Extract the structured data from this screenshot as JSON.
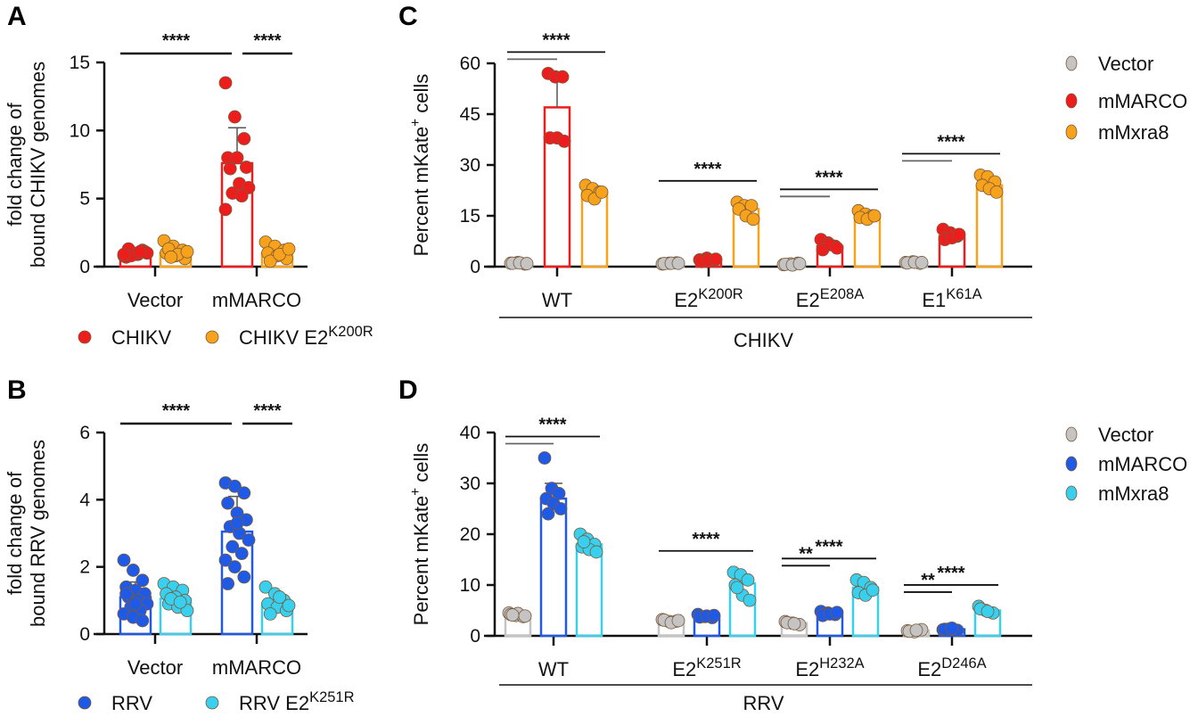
{
  "colors": {
    "Vector": "#c4c4c4",
    "CHIKV": "#ee1d1d",
    "CHIKV E2K200R": "#f7a21c",
    "mMARCO_C": "#ee1d1d",
    "mMxra8_C": "#f7a21c",
    "RRV": "#1f5ae6",
    "RRV E2K251R": "#38d0ee",
    "mMARCO_D": "#1f5ae6",
    "mMxra8_D": "#38d0ee"
  },
  "chart_data": [
    {
      "panel": "A",
      "type": "bar",
      "ylabel": [
        "fold change of",
        "bound CHIKV genomes"
      ],
      "ylim": [
        0,
        15
      ],
      "yticks": [
        0,
        5,
        10,
        15
      ],
      "categories": [
        "Vector",
        "mMARCO"
      ],
      "legend": {
        "placement": "bottom",
        "entries": [
          {
            "base": "CHIKV",
            "sup": ""
          },
          {
            "base": "CHIKV E2",
            "sup": "K200R"
          }
        ]
      },
      "series": [
        {
          "name": "CHIKV",
          "color": "#ee1d1d",
          "values": [
            1.0,
            7.6
          ],
          "points": [
            [
              0.8,
              1.0,
              1.2,
              0.7,
              0.9,
              1.1,
              1.3,
              0.9,
              1.0,
              0.8,
              1.1,
              0.9
            ],
            [
              13.5,
              11,
              9.4,
              8,
              8,
              7.3,
              7.2,
              6.1,
              5.8,
              5.4,
              5.2,
              4.2
            ]
          ],
          "err_upper": [
            null,
            10.2
          ]
        },
        {
          "name": "CHIKV E2K200R",
          "color": "#f7a21c",
          "values": [
            1.0,
            1.0
          ],
          "points": [
            [
              1.9,
              1.5,
              1.2,
              1.0,
              0.8,
              0.6,
              1.3,
              0.9,
              1.1,
              0.7
            ],
            [
              1.8,
              1.5,
              1.2,
              1.0,
              0.8,
              0.6,
              0.4,
              0.9,
              1.3
            ]
          ],
          "err_upper": [
            null,
            null
          ]
        }
      ],
      "significance": [
        {
          "from": [
            0,
            0
          ],
          "to": [
            1,
            0
          ],
          "label": "****"
        },
        {
          "from": [
            1,
            0
          ],
          "to": [
            1,
            1
          ],
          "label": "****"
        }
      ]
    },
    {
      "panel": "B",
      "type": "bar",
      "ylabel": [
        "fold change of",
        "bound RRV genomes"
      ],
      "ylim": [
        0,
        6
      ],
      "yticks": [
        0,
        2,
        4,
        6
      ],
      "categories": [
        "Vector",
        "mMARCO"
      ],
      "legend": {
        "placement": "bottom",
        "entries": [
          {
            "base": "RRV",
            "sup": ""
          },
          {
            "base": "RRV E2",
            "sup": "K251R"
          }
        ]
      },
      "series": [
        {
          "name": "RRV",
          "color": "#1f5ae6",
          "values": [
            1.1,
            3.05
          ],
          "points": [
            [
              2.2,
              1.9,
              1.6,
              1.4,
              1.3,
              1.2,
              1.1,
              1.0,
              0.9,
              0.8,
              0.7,
              0.6,
              0.5,
              0.4,
              1.2,
              0.9
            ],
            [
              4.5,
              4.4,
              4.2,
              3.9,
              3.6,
              3.4,
              3.2,
              3.0,
              2.8,
              2.6,
              2.4,
              2.2,
              2.0,
              1.7,
              1.5,
              3.3
            ]
          ],
          "err_upper": [
            1.55,
            4.1
          ]
        },
        {
          "name": "RRV E2K251R",
          "color": "#38d0ee",
          "values": [
            1.05,
            0.9
          ],
          "points": [
            [
              1.5,
              1.4,
              1.3,
              1.2,
              1.1,
              1.0,
              0.9,
              0.8,
              0.7,
              1.05,
              0.95
            ],
            [
              1.4,
              1.2,
              1.0,
              0.9,
              0.8,
              0.7,
              0.6,
              1.1,
              0.85
            ]
          ],
          "err_upper": [
            null,
            null
          ]
        }
      ],
      "significance": [
        {
          "from": [
            0,
            0
          ],
          "to": [
            1,
            0
          ],
          "label": "****"
        },
        {
          "from": [
            1,
            0
          ],
          "to": [
            1,
            1
          ],
          "label": "****"
        }
      ]
    },
    {
      "panel": "C",
      "type": "bar",
      "ylabel": [
        "Percent mKate",
        "+",
        " cells"
      ],
      "ylim": [
        0,
        60
      ],
      "yticks": [
        0,
        15,
        30,
        45,
        60
      ],
      "categories": [
        {
          "base": "WT",
          "sup": ""
        },
        {
          "base": "E2",
          "sup": "K200R"
        },
        {
          "base": "E2",
          "sup": "E208A"
        },
        {
          "base": "E1",
          "sup": "K61A"
        }
      ],
      "group_label": "CHIKV",
      "legend": {
        "placement": "right",
        "entries": [
          {
            "base": "Vector",
            "sup": ""
          },
          {
            "base": "mMARCO",
            "sup": ""
          },
          {
            "base": "mMxra8",
            "sup": ""
          }
        ]
      },
      "series": [
        {
          "name": "Vector",
          "color": "#c4c4c4",
          "values": [
            1.0,
            1.0,
            0.8,
            1.2
          ],
          "points": [
            [
              1,
              1.2,
              0.8,
              1,
              1.1,
              0.9
            ],
            [
              0.8,
              1,
              1.1,
              0.9,
              1,
              1
            ],
            [
              0.6,
              0.8,
              1,
              0.7,
              0.5,
              0.9
            ],
            [
              1.2,
              1.4,
              1,
              1.1,
              1.3,
              1.2
            ]
          ]
        },
        {
          "name": "mMARCO",
          "color": "#ee1d1d",
          "values": [
            47,
            2,
            6,
            9
          ],
          "points": [
            [
              57,
              56,
              56,
              38,
              38,
              37
            ],
            [
              2,
              2.5,
              1.8,
              1.5,
              2,
              2.2
            ],
            [
              8,
              7,
              6,
              5,
              6.5,
              5.5
            ],
            [
              11,
              10,
              9,
              8,
              8.5,
              9.5
            ]
          ],
          "err_upper": [
            57,
            null,
            null,
            null
          ]
        },
        {
          "name": "mMxra8",
          "color": "#f7a21c",
          "values": [
            22,
            17,
            15,
            24
          ],
          "points": [
            [
              24,
              23,
              22,
              21,
              20,
              22
            ],
            [
              19,
              18,
              18,
              17,
              15,
              14
            ],
            [
              16.5,
              15.5,
              15,
              14.5,
              14,
              15
            ],
            [
              27,
              26.5,
              25,
              24,
              23,
              22
            ]
          ]
        }
      ],
      "significance": [
        {
          "cat": 0,
          "from": 0,
          "to": 1,
          "label": ""
        },
        {
          "cat": 0,
          "from": 0,
          "to": 2,
          "label": "****"
        },
        {
          "cat": 1,
          "from": 0,
          "to": 2,
          "label": "****"
        },
        {
          "cat": 2,
          "from": 0,
          "to": 1,
          "label": ""
        },
        {
          "cat": 2,
          "from": 0,
          "to": 2,
          "label": "****"
        },
        {
          "cat": 3,
          "from": 0,
          "to": 1,
          "label": ""
        },
        {
          "cat": 3,
          "from": 0,
          "to": 2,
          "label": "****"
        }
      ]
    },
    {
      "panel": "D",
      "type": "bar",
      "ylabel": [
        "Percent mKate",
        "+",
        " cells"
      ],
      "ylim": [
        0,
        40
      ],
      "yticks": [
        0,
        10,
        20,
        30,
        40
      ],
      "categories": [
        {
          "base": "WT",
          "sup": ""
        },
        {
          "base": "E2",
          "sup": "K251R"
        },
        {
          "base": "E2",
          "sup": "H232A"
        },
        {
          "base": "E2",
          "sup": "D246A"
        }
      ],
      "group_label": "RRV",
      "legend": {
        "placement": "right",
        "entries": [
          {
            "base": "Vector",
            "sup": ""
          },
          {
            "base": "mMARCO",
            "sup": ""
          },
          {
            "base": "mMxra8",
            "sup": ""
          }
        ]
      },
      "series": [
        {
          "name": "Vector",
          "color": "#c4c4c4",
          "values": [
            4.2,
            3.0,
            2.5,
            1.0
          ],
          "points": [
            [
              4.5,
              4,
              3.8,
              4.2,
              4.4,
              3.9,
              4.1
            ],
            [
              3.2,
              2.8,
              2.9,
              3.1,
              2.6,
              3
            ],
            [
              2.8,
              2.5,
              2.2,
              2.6,
              2.4
            ],
            [
              1,
              0.8,
              1.2,
              0.9,
              1.1
            ]
          ]
        },
        {
          "name": "mMARCO",
          "color": "#1f5ae6",
          "values": [
            27,
            3.8,
            4.3,
            1.3
          ],
          "points": [
            [
              35,
              29,
              28,
              27,
              26,
              25,
              24
            ],
            [
              4.2,
              3.8,
              3.6,
              3.7,
              3.9,
              4
            ],
            [
              4.8,
              4.5,
              4.2,
              4,
              4.3,
              4.6
            ],
            [
              1.2,
              1.4,
              1.1,
              1.3,
              1.5
            ]
          ],
          "err_upper": [
            30,
            null,
            null,
            null
          ]
        },
        {
          "name": "mMxra8",
          "color": "#38d0ee",
          "values": [
            18,
            10.3,
            9.5,
            5.0
          ],
          "points": [
            [
              20,
              19,
              18,
              17.5,
              17,
              16.5,
              18.5
            ],
            [
              12.5,
              12,
              11,
              10,
              8,
              7,
              9.5
            ],
            [
              11,
              10.5,
              9.5,
              8.5,
              8,
              9
            ],
            [
              5.8,
              5,
              4.5,
              5.3,
              4.8
            ]
          ]
        }
      ],
      "significance": [
        {
          "cat": 0,
          "from": 0,
          "to": 1,
          "label": ""
        },
        {
          "cat": 0,
          "from": 0,
          "to": 2,
          "label": "****"
        },
        {
          "cat": 1,
          "from": 0,
          "to": 2,
          "label": "****"
        },
        {
          "cat": 2,
          "from": 0,
          "to": 1,
          "label": "**"
        },
        {
          "cat": 2,
          "from": 0,
          "to": 2,
          "label": "****"
        },
        {
          "cat": 3,
          "from": 0,
          "to": 1,
          "label": "**"
        },
        {
          "cat": 3,
          "from": 0,
          "to": 2,
          "label": "****"
        }
      ]
    }
  ]
}
